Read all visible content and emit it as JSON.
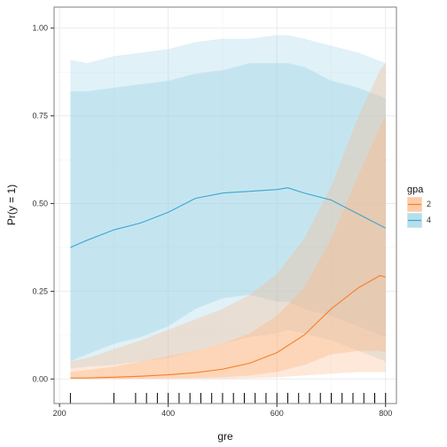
{
  "chart_data": {
    "type": "line",
    "title": "",
    "xlabel": "gre",
    "ylabel": "Pr(y = 1)",
    "xlim": [
      190,
      820
    ],
    "ylim": [
      -0.07,
      1.06
    ],
    "x_ticks": [
      200,
      400,
      600,
      800
    ],
    "x_tick_labels": [
      "200",
      "400",
      "600",
      "800"
    ],
    "y_ticks": [
      0,
      0.25,
      0.5,
      0.75,
      1
    ],
    "y_tick_labels": [
      "0.00",
      "0.25",
      "0.50",
      "0.75",
      "1.00"
    ],
    "grid": true,
    "legend": {
      "title": "gpa",
      "placement": "right",
      "entries": [
        "2",
        "4"
      ]
    },
    "colors": {
      "gpa_2": "#F57F2A",
      "gpa_4": "#3EA6CF",
      "band_2": "#FDB98A",
      "band_4": "#9ED4E6",
      "grid": "#ebebeb",
      "panel_border": "#7f7f7f",
      "rug": "#000000"
    },
    "rug_x": [
      220,
      300,
      340,
      360,
      380,
      400,
      420,
      440,
      460,
      480,
      500,
      520,
      540,
      560,
      580,
      600,
      620,
      640,
      660,
      680,
      700,
      720,
      740,
      760,
      780,
      800
    ],
    "series": [
      {
        "name": "2",
        "x": [
          220,
          250,
          300,
          350,
          400,
          450,
          500,
          550,
          600,
          650,
          700,
          750,
          790,
          800
        ],
        "values": [
          0.003,
          0.003,
          0.005,
          0.008,
          0.012,
          0.018,
          0.028,
          0.045,
          0.075,
          0.125,
          0.2,
          0.26,
          0.295,
          0.29
        ],
        "outer_band": {
          "lower": [
            0.0,
            0.0,
            0.0,
            0.0,
            0.0,
            0.0,
            0.0,
            0.002,
            0.005,
            0.01,
            0.015,
            0.02,
            0.02,
            0.02
          ],
          "upper": [
            0.05,
            0.06,
            0.085,
            0.11,
            0.14,
            0.17,
            0.2,
            0.24,
            0.3,
            0.4,
            0.55,
            0.75,
            0.88,
            0.9
          ]
        },
        "inner_band": {
          "lower": [
            0.0,
            0.0,
            0.0,
            0.001,
            0.002,
            0.003,
            0.005,
            0.01,
            0.02,
            0.04,
            0.07,
            0.08,
            0.08,
            0.075
          ],
          "upper": [
            0.02,
            0.025,
            0.035,
            0.05,
            0.065,
            0.08,
            0.1,
            0.13,
            0.18,
            0.26,
            0.4,
            0.58,
            0.72,
            0.75
          ]
        }
      },
      {
        "name": "4",
        "x": [
          220,
          250,
          300,
          350,
          400,
          450,
          500,
          550,
          600,
          620,
          650,
          700,
          750,
          800
        ],
        "values": [
          0.375,
          0.395,
          0.425,
          0.445,
          0.475,
          0.515,
          0.53,
          0.535,
          0.54,
          0.545,
          0.53,
          0.51,
          0.47,
          0.43
        ],
        "outer_band": {
          "lower": [
            0.03,
            0.035,
            0.04,
            0.05,
            0.06,
            0.08,
            0.1,
            0.12,
            0.13,
            0.14,
            0.13,
            0.11,
            0.08,
            0.05
          ],
          "upper": [
            0.91,
            0.9,
            0.92,
            0.93,
            0.94,
            0.96,
            0.97,
            0.97,
            0.98,
            0.98,
            0.97,
            0.95,
            0.93,
            0.9
          ]
        },
        "inner_band": {
          "lower": [
            0.05,
            0.07,
            0.1,
            0.12,
            0.15,
            0.2,
            0.23,
            0.24,
            0.22,
            0.22,
            0.2,
            0.18,
            0.15,
            0.12
          ],
          "upper": [
            0.82,
            0.82,
            0.83,
            0.84,
            0.85,
            0.87,
            0.88,
            0.9,
            0.9,
            0.9,
            0.89,
            0.85,
            0.83,
            0.8
          ]
        }
      }
    ]
  }
}
